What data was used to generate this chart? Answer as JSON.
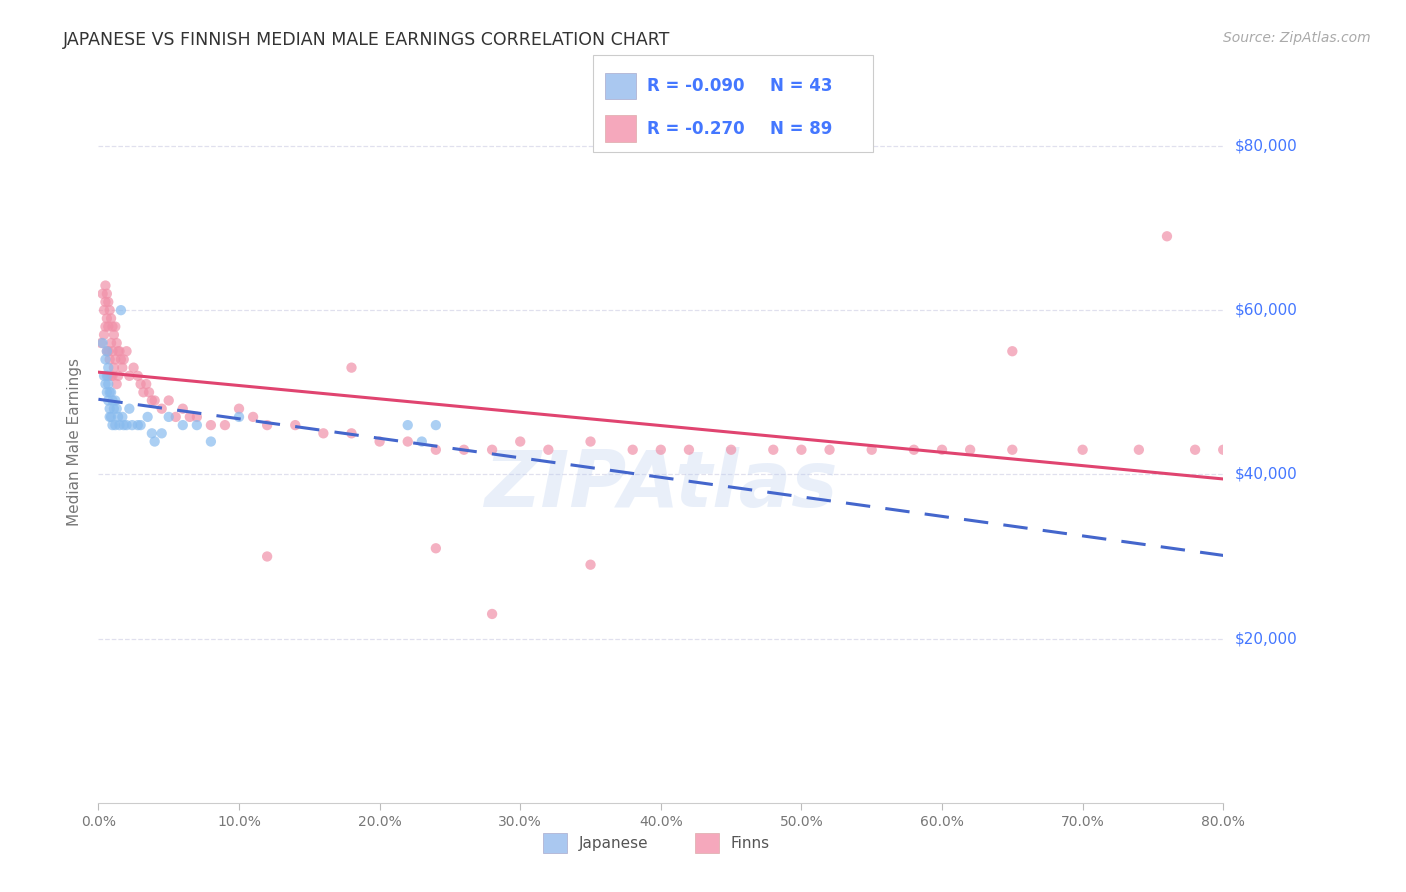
{
  "title": "JAPANESE VS FINNISH MEDIAN MALE EARNINGS CORRELATION CHART",
  "source": "Source: ZipAtlas.com",
  "ylabel": "Median Male Earnings",
  "watermark": "ZIPAtlas",
  "legend": {
    "japanese": {
      "R": "-0.090",
      "N": "43",
      "color": "#aac8f0"
    },
    "finns": {
      "R": "-0.270",
      "N": "89",
      "color": "#f5a8bc"
    }
  },
  "ytick_labels": [
    "$80,000",
    "$60,000",
    "$40,000",
    "$20,000"
  ],
  "ytick_values": [
    80000,
    60000,
    40000,
    20000
  ],
  "ylim": [
    0,
    88000
  ],
  "xlim": [
    0.0,
    0.8
  ],
  "axis_color": "#4477ff",
  "japanese_scatter_color": "#88bbee",
  "finns_scatter_color": "#f090a8",
  "japanese_line_color": "#4466cc",
  "finns_line_color": "#e04470",
  "background_color": "#ffffff",
  "grid_color": "#e0e0ee",
  "title_fontsize": 12.5,
  "source_fontsize": 10,
  "scatter_size": 55,
  "scatter_alpha": 0.7,
  "japanese_x": [
    0.003,
    0.004,
    0.005,
    0.005,
    0.006,
    0.006,
    0.006,
    0.007,
    0.007,
    0.007,
    0.008,
    0.008,
    0.008,
    0.009,
    0.009,
    0.01,
    0.01,
    0.011,
    0.012,
    0.012,
    0.013,
    0.014,
    0.015,
    0.016,
    0.017,
    0.018,
    0.02,
    0.022,
    0.024,
    0.028,
    0.03,
    0.035,
    0.038,
    0.04,
    0.045,
    0.05,
    0.06,
    0.07,
    0.08,
    0.1,
    0.22,
    0.23,
    0.24
  ],
  "japanese_y": [
    56000,
    52000,
    54000,
    51000,
    55000,
    52000,
    50000,
    53000,
    51000,
    49000,
    50000,
    48000,
    47000,
    50000,
    47000,
    49000,
    46000,
    48000,
    49000,
    46000,
    48000,
    47000,
    46000,
    60000,
    47000,
    46000,
    46000,
    48000,
    46000,
    46000,
    46000,
    47000,
    45000,
    44000,
    45000,
    47000,
    46000,
    46000,
    44000,
    47000,
    46000,
    44000,
    46000
  ],
  "finns_x": [
    0.002,
    0.003,
    0.004,
    0.004,
    0.005,
    0.005,
    0.005,
    0.006,
    0.006,
    0.006,
    0.007,
    0.007,
    0.007,
    0.007,
    0.008,
    0.008,
    0.009,
    0.009,
    0.009,
    0.01,
    0.01,
    0.01,
    0.011,
    0.011,
    0.012,
    0.012,
    0.013,
    0.013,
    0.014,
    0.014,
    0.015,
    0.016,
    0.017,
    0.018,
    0.02,
    0.022,
    0.025,
    0.028,
    0.03,
    0.032,
    0.034,
    0.036,
    0.038,
    0.04,
    0.045,
    0.05,
    0.055,
    0.06,
    0.065,
    0.07,
    0.08,
    0.09,
    0.1,
    0.11,
    0.12,
    0.14,
    0.16,
    0.18,
    0.2,
    0.22,
    0.24,
    0.26,
    0.28,
    0.3,
    0.32,
    0.35,
    0.38,
    0.4,
    0.42,
    0.45,
    0.48,
    0.5,
    0.52,
    0.55,
    0.58,
    0.6,
    0.62,
    0.65,
    0.7,
    0.74,
    0.76,
    0.78,
    0.8,
    0.35,
    0.28,
    0.24,
    0.18,
    0.12,
    0.65
  ],
  "finns_y": [
    56000,
    62000,
    60000,
    57000,
    63000,
    61000,
    58000,
    62000,
    59000,
    55000,
    61000,
    58000,
    55000,
    52000,
    60000,
    54000,
    59000,
    56000,
    52000,
    58000,
    55000,
    52000,
    57000,
    53000,
    58000,
    54000,
    56000,
    51000,
    55000,
    52000,
    55000,
    54000,
    53000,
    54000,
    55000,
    52000,
    53000,
    52000,
    51000,
    50000,
    51000,
    50000,
    49000,
    49000,
    48000,
    49000,
    47000,
    48000,
    47000,
    47000,
    46000,
    46000,
    48000,
    47000,
    46000,
    46000,
    45000,
    45000,
    44000,
    44000,
    43000,
    43000,
    43000,
    44000,
    43000,
    44000,
    43000,
    43000,
    43000,
    43000,
    43000,
    43000,
    43000,
    43000,
    43000,
    43000,
    43000,
    43000,
    43000,
    43000,
    69000,
    43000,
    43000,
    29000,
    23000,
    31000,
    53000,
    30000,
    55000
  ]
}
